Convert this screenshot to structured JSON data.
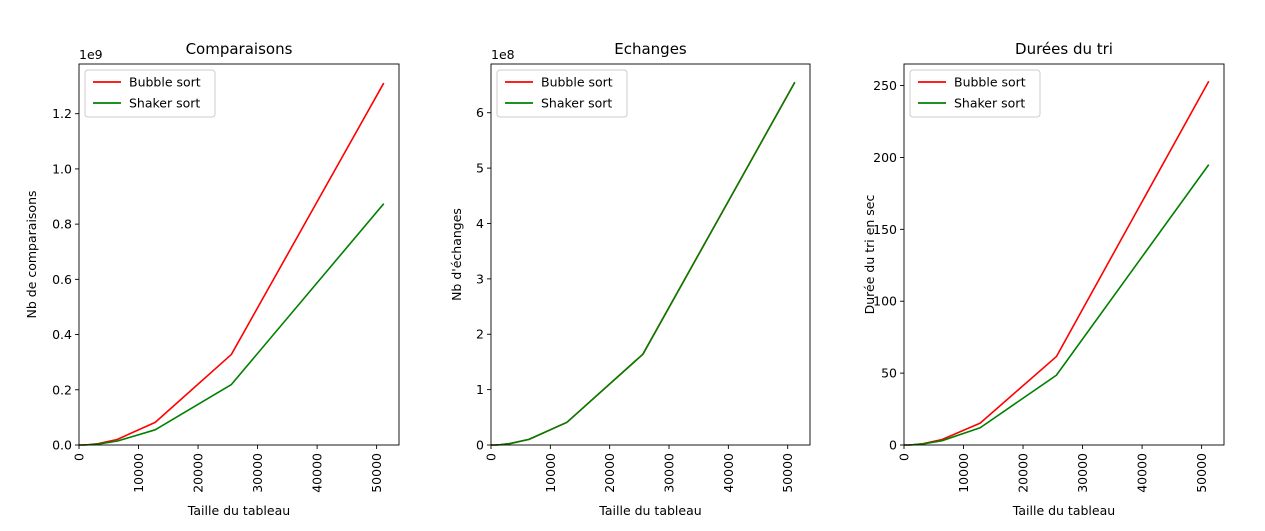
{
  "chart_data": [
    {
      "type": "line",
      "title": "Comparaisons",
      "xlabel": "Taille du tableau",
      "ylabel": "Nb de comparaisons",
      "scale_label": "1e9",
      "xlim": [
        0,
        53760
      ],
      "ylim": [
        0,
        1.38
      ],
      "xticks": [
        0,
        10000,
        20000,
        30000,
        40000,
        50000
      ],
      "xtick_labels": [
        "0",
        "10000",
        "20000",
        "30000",
        "40000",
        "50000"
      ],
      "yticks": [
        0,
        0.2,
        0.4,
        0.6,
        0.8,
        1.0,
        1.2
      ],
      "ytick_labels": [
        "0.0",
        "0.2",
        "0.4",
        "0.6",
        "0.8",
        "1.0",
        "1.2"
      ],
      "legend": "upper-left",
      "x": [
        0,
        800,
        1600,
        3200,
        6400,
        12800,
        25600,
        51200
      ],
      "series": [
        {
          "name": "Bubble sort",
          "color": "#ff0000",
          "values": [
            0,
            0.0003,
            0.0013,
            0.005,
            0.02,
            0.082,
            0.328,
            1.311
          ]
        },
        {
          "name": "Shaker sort",
          "color": "#008000",
          "values": [
            0,
            0.0002,
            0.0009,
            0.0035,
            0.014,
            0.055,
            0.219,
            0.874
          ]
        }
      ]
    },
    {
      "type": "line",
      "title": "Echanges",
      "xlabel": "Taille du tableau",
      "ylabel": "Nb d'échanges",
      "scale_label": "1e8",
      "xlim": [
        0,
        53760
      ],
      "ylim": [
        0,
        6.88
      ],
      "xticks": [
        0,
        10000,
        20000,
        30000,
        40000,
        50000
      ],
      "xtick_labels": [
        "0",
        "10000",
        "20000",
        "30000",
        "40000",
        "50000"
      ],
      "yticks": [
        0,
        1,
        2,
        3,
        4,
        5,
        6
      ],
      "ytick_labels": [
        "0",
        "1",
        "2",
        "3",
        "4",
        "5",
        "6"
      ],
      "legend": "upper-left",
      "x": [
        0,
        800,
        1600,
        3200,
        6400,
        12800,
        25600,
        51200
      ],
      "series": [
        {
          "name": "Bubble sort",
          "color": "#ff0000",
          "values": [
            0,
            0.0016,
            0.0064,
            0.026,
            0.102,
            0.41,
            1.64,
            6.55
          ]
        },
        {
          "name": "Shaker sort",
          "color": "#008000",
          "values": [
            0,
            0.0016,
            0.0064,
            0.026,
            0.102,
            0.41,
            1.64,
            6.55
          ]
        }
      ]
    },
    {
      "type": "line",
      "title": "Durées du tri",
      "xlabel": "Taille du tableau",
      "ylabel": "Durée du tri en sec",
      "scale_label": "",
      "xlim": [
        0,
        53760
      ],
      "ylim": [
        0,
        265
      ],
      "xticks": [
        0,
        10000,
        20000,
        30000,
        40000,
        50000
      ],
      "xtick_labels": [
        "0",
        "10000",
        "20000",
        "30000",
        "40000",
        "50000"
      ],
      "yticks": [
        0,
        50,
        100,
        150,
        200,
        250
      ],
      "ytick_labels": [
        "0",
        "50",
        "100",
        "150",
        "200",
        "250"
      ],
      "legend": "upper-left",
      "x": [
        0,
        800,
        1600,
        3200,
        6400,
        12800,
        25600,
        51200
      ],
      "series": [
        {
          "name": "Bubble sort",
          "color": "#ff0000",
          "values": [
            0,
            0.06,
            0.24,
            0.95,
            3.8,
            15.2,
            61.5,
            253
          ]
        },
        {
          "name": "Shaker sort",
          "color": "#008000",
          "values": [
            0,
            0.05,
            0.2,
            0.75,
            3.0,
            12.0,
            48.5,
            195
          ]
        }
      ]
    }
  ]
}
